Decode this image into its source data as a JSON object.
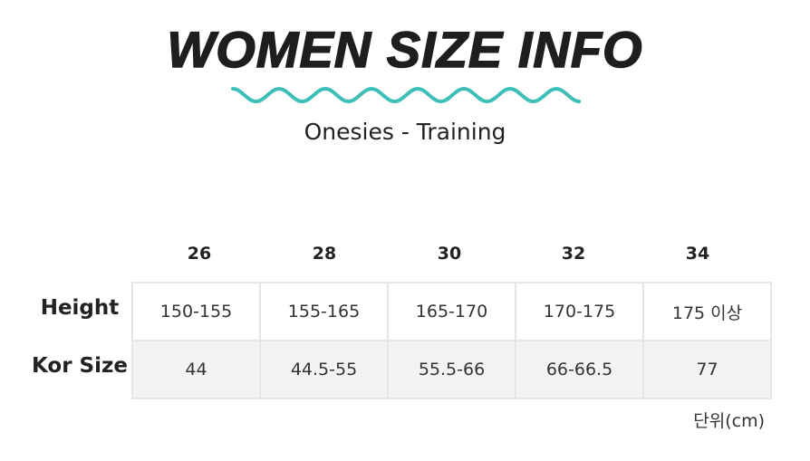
{
  "title": "WOMEN SIZE INFO",
  "subtitle": "Onesies - Training",
  "accent_color": "#3dbfb8",
  "table": {
    "columns": [
      "26",
      "28",
      "30",
      "32",
      "34"
    ],
    "rows": [
      {
        "label": "Height",
        "values": [
          "150-155",
          "155-165",
          "165-170",
          "170-175",
          "175 이상"
        ]
      },
      {
        "label": "Kor Size",
        "values": [
          "44",
          "44.5-55",
          "55.5-66",
          "66-66.5",
          "77"
        ]
      }
    ]
  },
  "unit": "단위(cm)"
}
